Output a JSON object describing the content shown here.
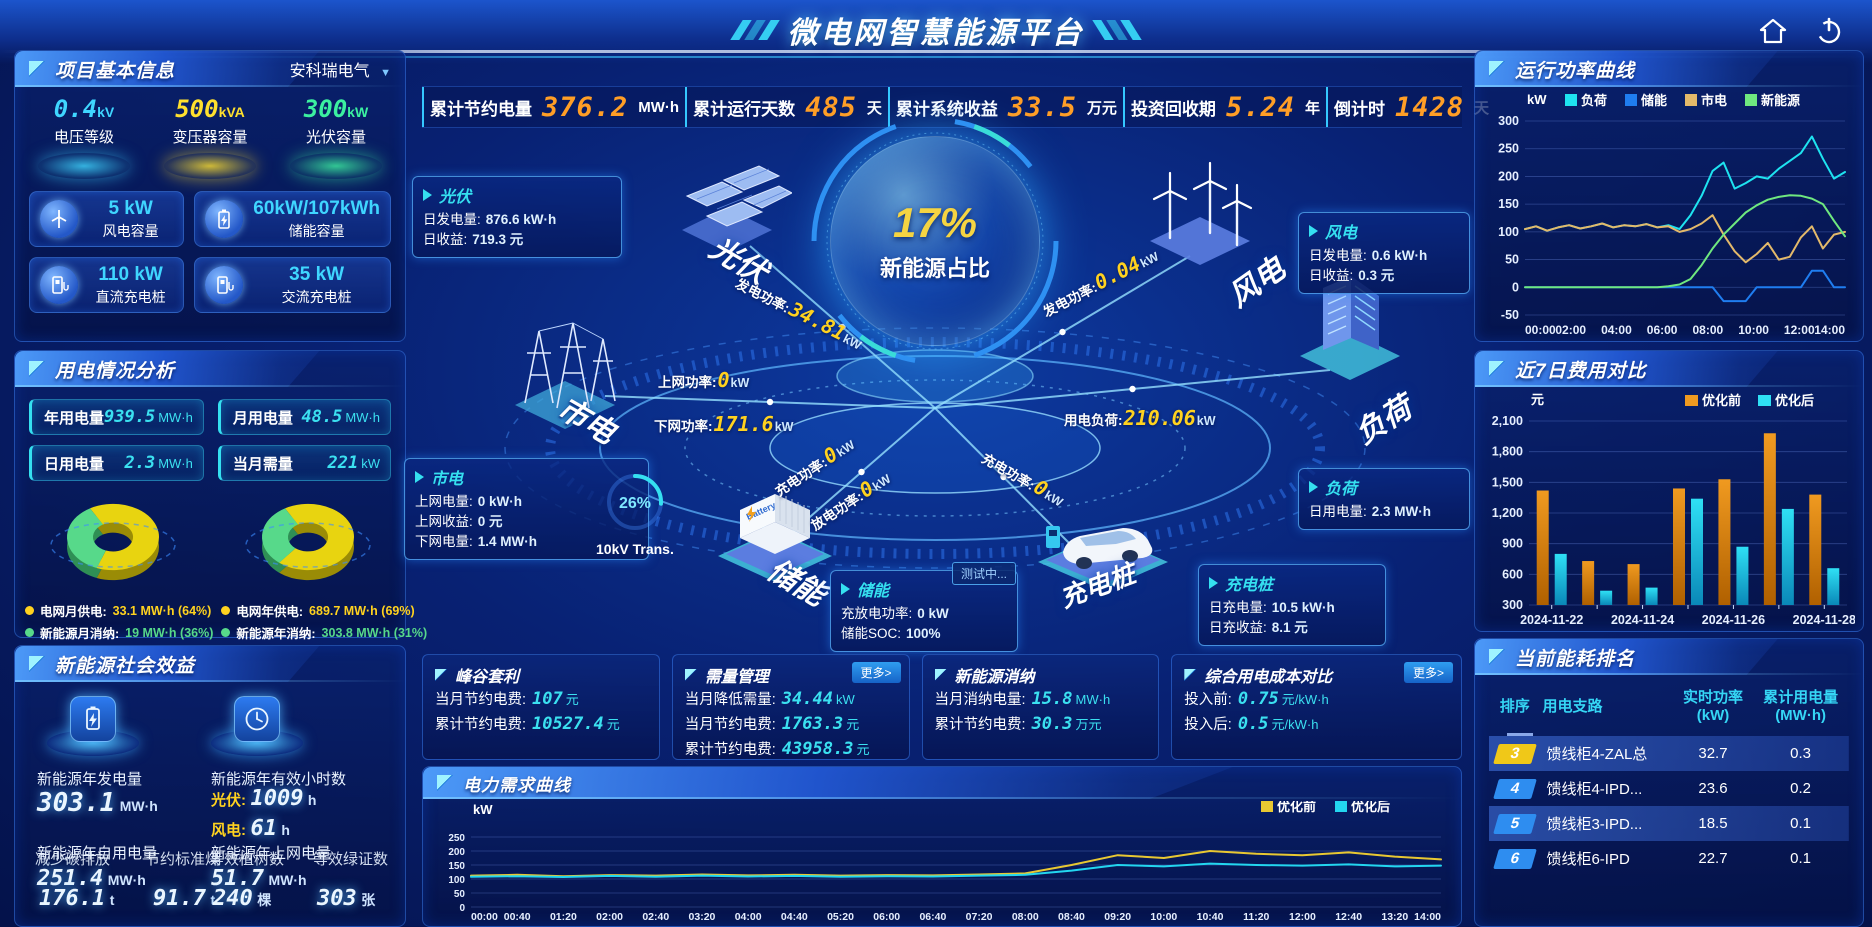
{
  "header": {
    "title": "微电网智慧能源平台"
  },
  "stats_bar": [
    {
      "label": "累计节约电量",
      "value": "376.2",
      "unit": "MW·h"
    },
    {
      "label": "累计运行天数",
      "value": "485",
      "unit": "天"
    },
    {
      "label": "累计系统收益",
      "value": "33.5",
      "unit": "万元"
    },
    {
      "label": "投资回收期",
      "value": "5.24",
      "unit": "年"
    },
    {
      "label": "倒计时",
      "value": "1428",
      "unit": "天"
    }
  ],
  "project_info": {
    "title": "项目基本信息",
    "company": "安科瑞电气",
    "podiums": [
      {
        "value": "0.4",
        "unit": "kV",
        "label": "电压等级",
        "color": "#3fd6ff"
      },
      {
        "value": "500",
        "unit": "kVA",
        "label": "变压器容量",
        "color": "#ffe02e"
      },
      {
        "value": "300",
        "unit": "kW",
        "label": "光伏容量",
        "color": "#3cf0a0"
      }
    ],
    "cards": [
      {
        "icon": "wind-turbine-icon",
        "value": "5 kW",
        "label": "风电容量"
      },
      {
        "icon": "battery-icon",
        "value": "60kW/107kWh",
        "label": "储能容量"
      },
      {
        "icon": "dc-charger-icon",
        "value": "110 kW",
        "label": "直流充电桩"
      },
      {
        "icon": "ac-charger-icon",
        "value": "35 kW",
        "label": "交流充电桩"
      }
    ]
  },
  "power_analysis": {
    "title": "用电情况分析",
    "stats": [
      {
        "label": "年用电量",
        "value": "939.5",
        "unit": "MW·h"
      },
      {
        "label": "月用电量",
        "value": "48.5",
        "unit": "MW·h"
      },
      {
        "label": "日用电量",
        "value": "2.3",
        "unit": "MW·h"
      },
      {
        "label": "当月需量",
        "value": "221",
        "unit": "kW"
      }
    ],
    "donut_month": {
      "type": "pie",
      "slices": [
        {
          "label": "电网月供电",
          "value": 64,
          "color": "#e8d410",
          "dark": "#9a8c06"
        },
        {
          "label": "新能源月消纳",
          "value": 36,
          "color": "#57d98a",
          "dark": "#2f8f55"
        }
      ]
    },
    "donut_year": {
      "type": "pie",
      "slices": [
        {
          "label": "电网年供电",
          "value": 69,
          "color": "#e8d410",
          "dark": "#9a8c06"
        },
        {
          "label": "新能源年消纳",
          "value": 31,
          "color": "#57d98a",
          "dark": "#2f8f55"
        }
      ]
    },
    "legends": [
      {
        "color": "#ffd21f",
        "label": "电网月供电:",
        "value": "33.1 MW·h (64%)"
      },
      {
        "color": "#ffd21f",
        "label": "电网年供电:",
        "value": "689.7 MW·h (69%)"
      },
      {
        "color": "#57d98a",
        "label": "新能源月消纳:",
        "value": "19 MW·h (36%)"
      },
      {
        "color": "#57d98a",
        "label": "新能源年消纳:",
        "value": "303.8 MW·h (31%)"
      }
    ]
  },
  "social_benefit": {
    "title": "新能源社会效益",
    "gen": {
      "label": "新能源年发电量",
      "value": "303.1",
      "unit": "MW·h"
    },
    "hours": {
      "label": "新能源年有效小时数",
      "pv_label": "光伏:",
      "pv_value": "1009",
      "pv_unit": "h",
      "wind_label": "风电:",
      "wind_value": "61",
      "wind_unit": "h"
    },
    "self_use": {
      "label": "新能源年自用电量",
      "value": "251.4",
      "unit": "MW·h"
    },
    "co2": {
      "label": "减少碳排放",
      "value": "176.1",
      "unit": "t"
    },
    "coal": {
      "label": "节约标准煤",
      "value": "91.7",
      "unit": "t"
    },
    "to_grid": {
      "label": "新能源年上网电量",
      "value": "51.7",
      "unit": "MW·h"
    },
    "trees": {
      "label": "等效植树数",
      "value": "240",
      "unit": "棵"
    },
    "certs": {
      "label": "等效绿证数",
      "value": "303",
      "unit": "张"
    }
  },
  "center": {
    "core_percent": "17%",
    "core_label": "新能源占比",
    "gauge": {
      "percent": "26%",
      "label": "10kV Trans."
    },
    "status_tag": "测试中...",
    "nodes": [
      {
        "id": "pv",
        "label": "光伏"
      },
      {
        "id": "wind",
        "label": "风电"
      },
      {
        "id": "grid",
        "label": "市电"
      },
      {
        "id": "storage",
        "label": "储能"
      },
      {
        "id": "charger",
        "label": "充电桩"
      },
      {
        "id": "load",
        "label": "负荷"
      }
    ],
    "info_boxes": [
      {
        "id": "pv",
        "title": "光伏",
        "lines": [
          {
            "label": "日发电量:",
            "value": "876.6 kW·h"
          },
          {
            "label": "日收益:",
            "value": "719.3 元"
          }
        ]
      },
      {
        "id": "grid",
        "title": "市电",
        "lines": [
          {
            "label": "上网电量:",
            "value": "0 kW·h"
          },
          {
            "label": "上网收益:",
            "value": "0 元"
          },
          {
            "label": "下网电量:",
            "value": "1.4 MW·h"
          }
        ]
      },
      {
        "id": "storage",
        "title": "储能",
        "lines": [
          {
            "label": "充放电功率:",
            "value": "0 kW"
          },
          {
            "label": "储能SOC:",
            "value": "100%"
          }
        ]
      },
      {
        "id": "wind",
        "title": "风电",
        "lines": [
          {
            "label": "日发电量:",
            "value": "0.6 kW·h"
          },
          {
            "label": "日收益:",
            "value": "0.3 元"
          }
        ]
      },
      {
        "id": "load",
        "title": "负荷",
        "lines": [
          {
            "label": "日用电量:",
            "value": "2.3 MW·h"
          }
        ]
      },
      {
        "id": "charger",
        "title": "充电桩",
        "lines": [
          {
            "label": "日充电量:",
            "value": "10.5 kW·h"
          },
          {
            "label": "日充收益:",
            "value": "8.1 元"
          }
        ]
      }
    ],
    "flow_labels": [
      {
        "label": "发电功率:",
        "value": "34.81",
        "unit": "kW"
      },
      {
        "label": "上网功率:",
        "value": "0",
        "unit": "kW"
      },
      {
        "label": "下网功率:",
        "value": "171.6",
        "unit": "kW"
      },
      {
        "label": "发电功率:",
        "value": "0.04",
        "unit": "kW"
      },
      {
        "label": "用电负荷:",
        "value": "210.06",
        "unit": "kW"
      },
      {
        "label": "充电功率:",
        "value": "0",
        "unit": "kW"
      },
      {
        "label": "放电功率:",
        "value": "0",
        "unit": "kW"
      },
      {
        "label": "充电功率:",
        "value": "0",
        "unit": "kW"
      }
    ]
  },
  "mid_panels": [
    {
      "title": "峰谷套利",
      "more": "",
      "rows": [
        {
          "label": "当月节约电费:",
          "value": "107",
          "unit": "元"
        },
        {
          "label": "累计节约电费:",
          "value": "10527.4",
          "unit": "元"
        }
      ]
    },
    {
      "title": "需量管理",
      "more": "更多>",
      "rows": [
        {
          "label": "当月降低需量:",
          "value": "34.44",
          "unit": "kW"
        },
        {
          "label": "当月节约电费:",
          "value": "1763.3",
          "unit": "元"
        },
        {
          "label": "累计节约电费:",
          "value": "43958.3",
          "unit": "元"
        }
      ]
    },
    {
      "title": "新能源消纳",
      "more": "",
      "rows": [
        {
          "label": "当月消纳电量:",
          "value": "15.8",
          "unit": "MW·h"
        },
        {
          "label": "累计节约电费:",
          "value": "30.3",
          "unit": "万元"
        }
      ]
    },
    {
      "title": "综合用电成本对比",
      "more": "更多>",
      "rows": [
        {
          "label": "投入前:",
          "value": "0.75",
          "unit": "元/kW·h"
        },
        {
          "label": "投入后:",
          "value": "0.5",
          "unit": "元/kW·h"
        }
      ]
    }
  ],
  "chart_data": [
    {
      "id": "run_power",
      "type": "line",
      "title": "运行功率曲线",
      "ylabel": "kW",
      "ylim": [
        -50,
        300
      ],
      "yticks": [
        300,
        250,
        200,
        150,
        100,
        50,
        0,
        -50
      ],
      "xticks": [
        "00:00",
        "02:00",
        "04:00",
        "06:00",
        "08:00",
        "10:00",
        "12:00",
        "14:00"
      ],
      "legend_position": "top",
      "series": [
        {
          "name": "负荷",
          "color": "#1ee3f0",
          "values": [
            105,
            110,
            102,
            108,
            112,
            106,
            110,
            115,
            108,
            112,
            110,
            114,
            108,
            112,
            105,
            130,
            165,
            210,
            225,
            178,
            188,
            200,
            196,
            214,
            228,
            242,
            272,
            232,
            196,
            208
          ]
        },
        {
          "name": "储能",
          "color": "#1f7df0",
          "values": [
            0,
            0,
            0,
            0,
            0,
            0,
            0,
            0,
            0,
            0,
            0,
            0,
            0,
            0,
            0,
            0,
            0,
            0,
            -25,
            -25,
            -25,
            0,
            0,
            0,
            0,
            0,
            30,
            30,
            0,
            0
          ]
        },
        {
          "name": "市电",
          "color": "#e3b96a",
          "values": [
            105,
            110,
            102,
            108,
            112,
            106,
            110,
            115,
            108,
            112,
            110,
            114,
            108,
            110,
            100,
            105,
            115,
            130,
            95,
            65,
            45,
            60,
            80,
            50,
            55,
            90,
            110,
            70,
            95,
            100
          ]
        },
        {
          "name": "新能源",
          "color": "#6fe87f",
          "values": [
            0,
            0,
            0,
            0,
            0,
            0,
            0,
            0,
            0,
            0,
            0,
            0,
            0,
            2,
            5,
            15,
            40,
            70,
            95,
            115,
            135,
            148,
            158,
            163,
            166,
            165,
            160,
            150,
            120,
            92
          ]
        }
      ]
    },
    {
      "id": "cost_compare",
      "type": "bar",
      "title": "近7日费用对比",
      "ylabel": "元",
      "ylim": [
        300,
        2100
      ],
      "yticks": [
        2100,
        1800,
        1500,
        1200,
        900,
        600,
        300
      ],
      "categories": [
        "2024-11-22",
        "2024-11-23",
        "2024-11-24",
        "2024-11-25",
        "2024-11-26",
        "2024-11-27",
        "2024-11-28"
      ],
      "xtick_show": [
        "2024-11-22",
        "",
        "2024-11-24",
        "",
        "2024-11-26",
        "",
        "2024-11-28"
      ],
      "legend_position": "top-right",
      "series": [
        {
          "name": "优化前",
          "color": "#f09a20",
          "color2": "#b06000",
          "values": [
            1420,
            730,
            700,
            1440,
            1530,
            1980,
            1380
          ]
        },
        {
          "name": "优化后",
          "color": "#2fe0f5",
          "color2": "#0a88b8",
          "values": [
            800,
            440,
            470,
            1340,
            870,
            1240,
            660
          ]
        }
      ]
    },
    {
      "id": "demand_curve",
      "type": "line",
      "title": "电力需求曲线",
      "ylabel": "kW",
      "ylim": [
        0,
        300
      ],
      "yticks": [
        250,
        200,
        150,
        100,
        50,
        0
      ],
      "xticks": [
        "00:00",
        "00:40",
        "01:20",
        "02:00",
        "02:40",
        "03:20",
        "04:00",
        "04:40",
        "05:20",
        "06:00",
        "06:40",
        "07:20",
        "08:00",
        "08:40",
        "09:20",
        "10:00",
        "10:40",
        "11:20",
        "12:00",
        "12:40",
        "13:20",
        "14:00"
      ],
      "legend_position": "top-right",
      "series": [
        {
          "name": "优化前",
          "color": "#e8c832",
          "values": [
            112,
            115,
            110,
            114,
            112,
            116,
            113,
            115,
            112,
            114,
            113,
            116,
            120,
            150,
            185,
            175,
            200,
            190,
            185,
            195,
            180,
            170
          ]
        },
        {
          "name": "优化后",
          "color": "#23d6f0",
          "values": [
            108,
            110,
            107,
            111,
            108,
            112,
            109,
            111,
            108,
            110,
            109,
            112,
            115,
            130,
            150,
            145,
            155,
            150,
            148,
            152,
            145,
            148
          ]
        }
      ]
    }
  ],
  "ranking": {
    "title": "当前能耗排名",
    "columns": [
      {
        "label": "排序",
        "sub": ""
      },
      {
        "label": "用电支路",
        "sub": ""
      },
      {
        "label": "实时功率",
        "sub": "(kW)"
      },
      {
        "label": "累计用电量",
        "sub": "(MW·h)"
      }
    ],
    "rows": [
      {
        "rank": "3",
        "branch": "馈线柜4-ZAL总",
        "power": "32.7",
        "energy": "0.3",
        "badge": "#f0c818",
        "highlight": true
      },
      {
        "rank": "4",
        "branch": "馈线柜4-IPD...",
        "power": "23.6",
        "energy": "0.2",
        "badge": "#2e8df0",
        "highlight": false
      },
      {
        "rank": "5",
        "branch": "馈线柜3-IPD...",
        "power": "18.5",
        "energy": "0.1",
        "badge": "#2e8df0",
        "highlight": true
      },
      {
        "rank": "6",
        "branch": "馈线柜6-IPD",
        "power": "22.7",
        "energy": "0.1",
        "badge": "#2e8df0",
        "highlight": false
      }
    ]
  }
}
